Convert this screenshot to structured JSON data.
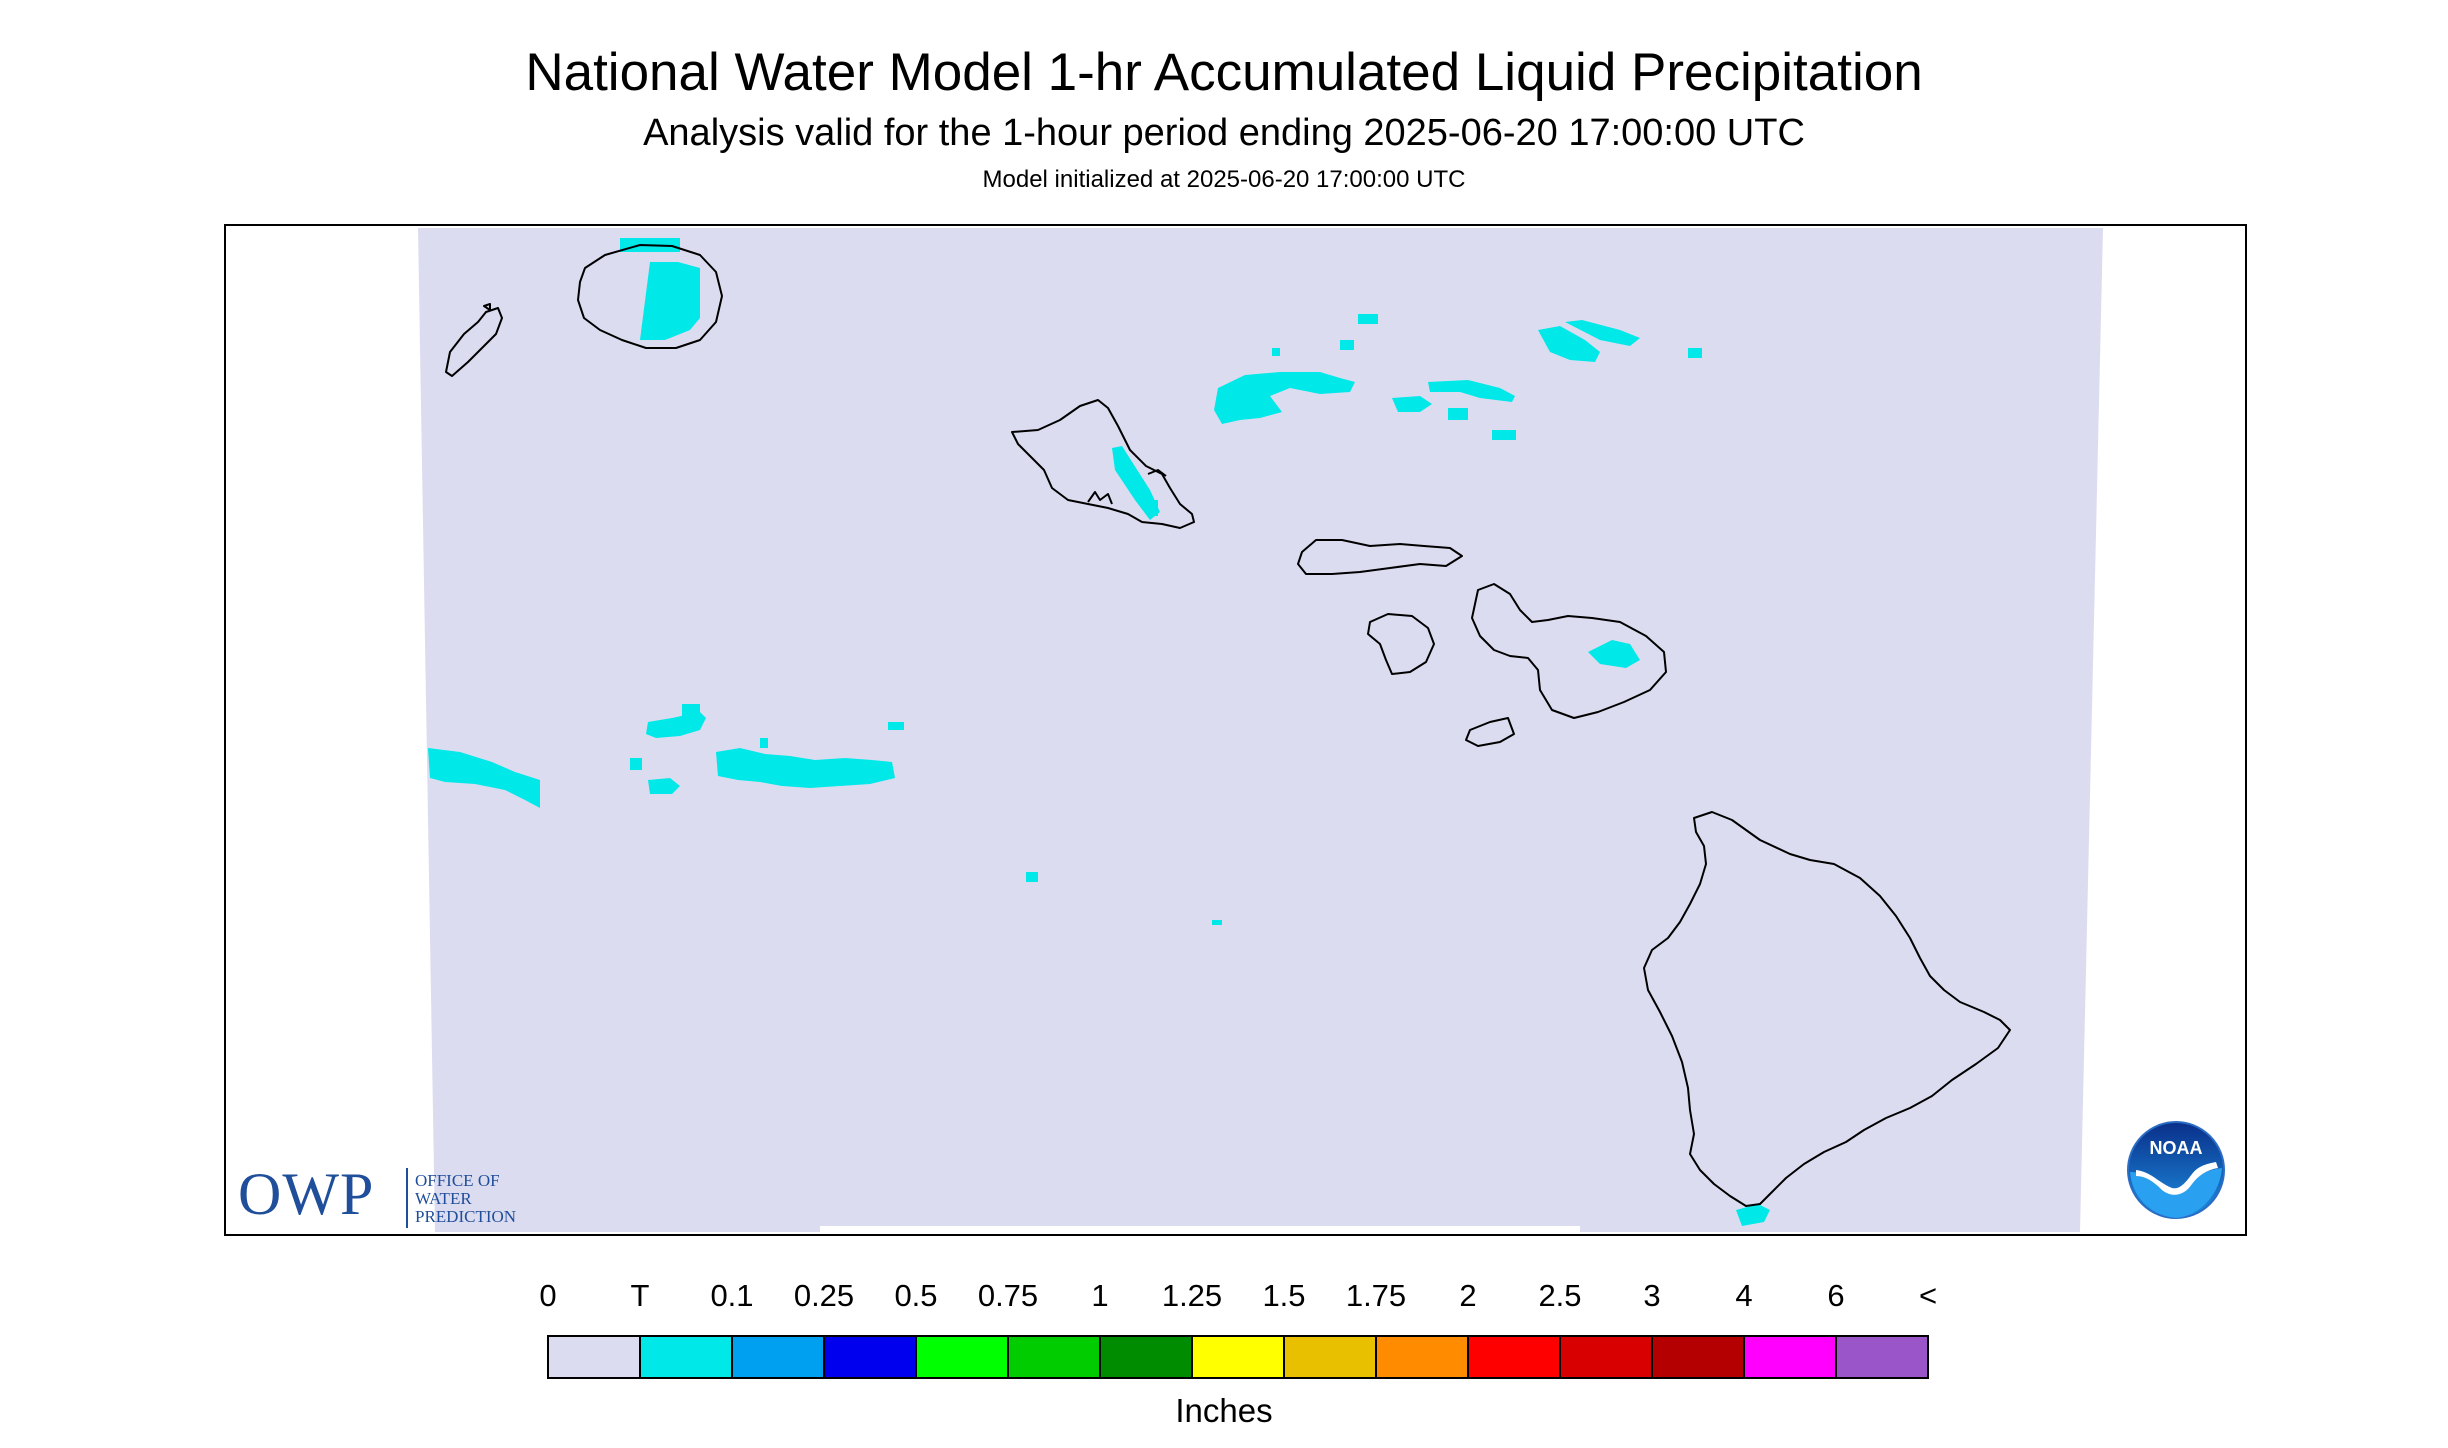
{
  "header": {
    "title": "National Water Model 1-hr Accumulated Liquid Precipitation",
    "subtitle": "Analysis valid for the 1-hour period ending 2025-06-20 17:00:00 UTC",
    "init_line": "Model initialized at 2025-06-20 17:00:00 UTC"
  },
  "legend": {
    "labels": [
      "0",
      "T",
      "0.1",
      "0.25",
      "0.5",
      "0.75",
      "1",
      "1.25",
      "1.5",
      "1.75",
      "2",
      "2.5",
      "3",
      "4",
      "6",
      "<"
    ],
    "colors": [
      "#dcdcf0",
      "#00e8e8",
      "#00a0f0",
      "#0000ee",
      "#00ff00",
      "#00cc00",
      "#008c00",
      "#ffff00",
      "#e8c000",
      "#ff8c00",
      "#ff0000",
      "#d80000",
      "#b40000",
      "#ff00ff",
      "#9a55c8"
    ],
    "units": "Inches"
  },
  "colors": {
    "background_no_precip": "#dcdcf0",
    "trace": "#00e8e8",
    "coastline": "#000000",
    "owp_blue": "#1f4e9a"
  },
  "logos": {
    "owp_abbrev": "OWP",
    "owp_line1": "OFFICE OF",
    "owp_line2": "WATER",
    "owp_line3": "PREDICTION",
    "noaa_text": "NOAA"
  }
}
